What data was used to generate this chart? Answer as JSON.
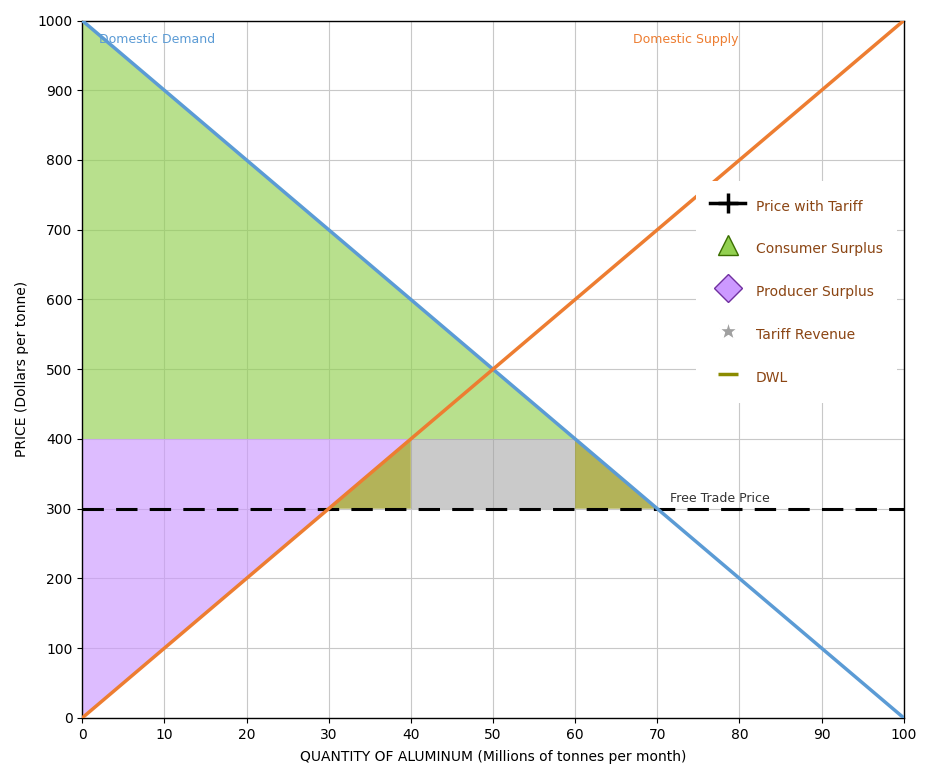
{
  "title": "",
  "xlabel": "QUANTITY OF ALUMINUM (Millions of tonnes per month)",
  "ylabel": "PRICE (Dollars per tonne)",
  "xlim": [
    0,
    100
  ],
  "ylim": [
    0,
    1000
  ],
  "xticks": [
    0,
    10,
    20,
    30,
    40,
    50,
    60,
    70,
    80,
    90,
    100
  ],
  "yticks": [
    0,
    100,
    200,
    300,
    400,
    500,
    600,
    700,
    800,
    900,
    1000
  ],
  "demand_points": [
    [
      0,
      1000
    ],
    [
      100,
      0
    ]
  ],
  "supply_points": [
    [
      0,
      0
    ],
    [
      100,
      1000
    ]
  ],
  "demand_color": "#5B9BD5",
  "supply_color": "#ED7D31",
  "free_trade_price": 300,
  "tariff_price": 400,
  "free_trade_supply_q": 30,
  "free_trade_demand_q": 70,
  "tariff_supply_q": 40,
  "tariff_demand_q": 60,
  "consumer_surplus_color": "#92D050",
  "consumer_surplus_alpha": 0.65,
  "producer_surplus_color": "#CC99FF",
  "producer_surplus_alpha": 0.65,
  "tariff_revenue_color": "#A0A0A0",
  "tariff_revenue_alpha": 0.55,
  "dwl_color": "#8B8B00",
  "dwl_alpha": 0.65,
  "free_trade_label": "Free Trade Price",
  "demand_label": "Domestic Demand",
  "supply_label": "Domestic Supply",
  "legend_price_tariff": "Price with Tariff",
  "legend_consumer_surplus": "Consumer Surplus",
  "legend_producer_surplus": "Producer Surplus",
  "legend_tariff_revenue": "Tariff Revenue",
  "legend_dwl": "DWL",
  "background_color": "#FFFFFF",
  "grid_color": "#C8C8C8",
  "label_color_demand": "#5B9BD5",
  "label_color_supply": "#ED7D31",
  "label_color_free_trade": "#333333",
  "legend_label_color": "#8B4513"
}
